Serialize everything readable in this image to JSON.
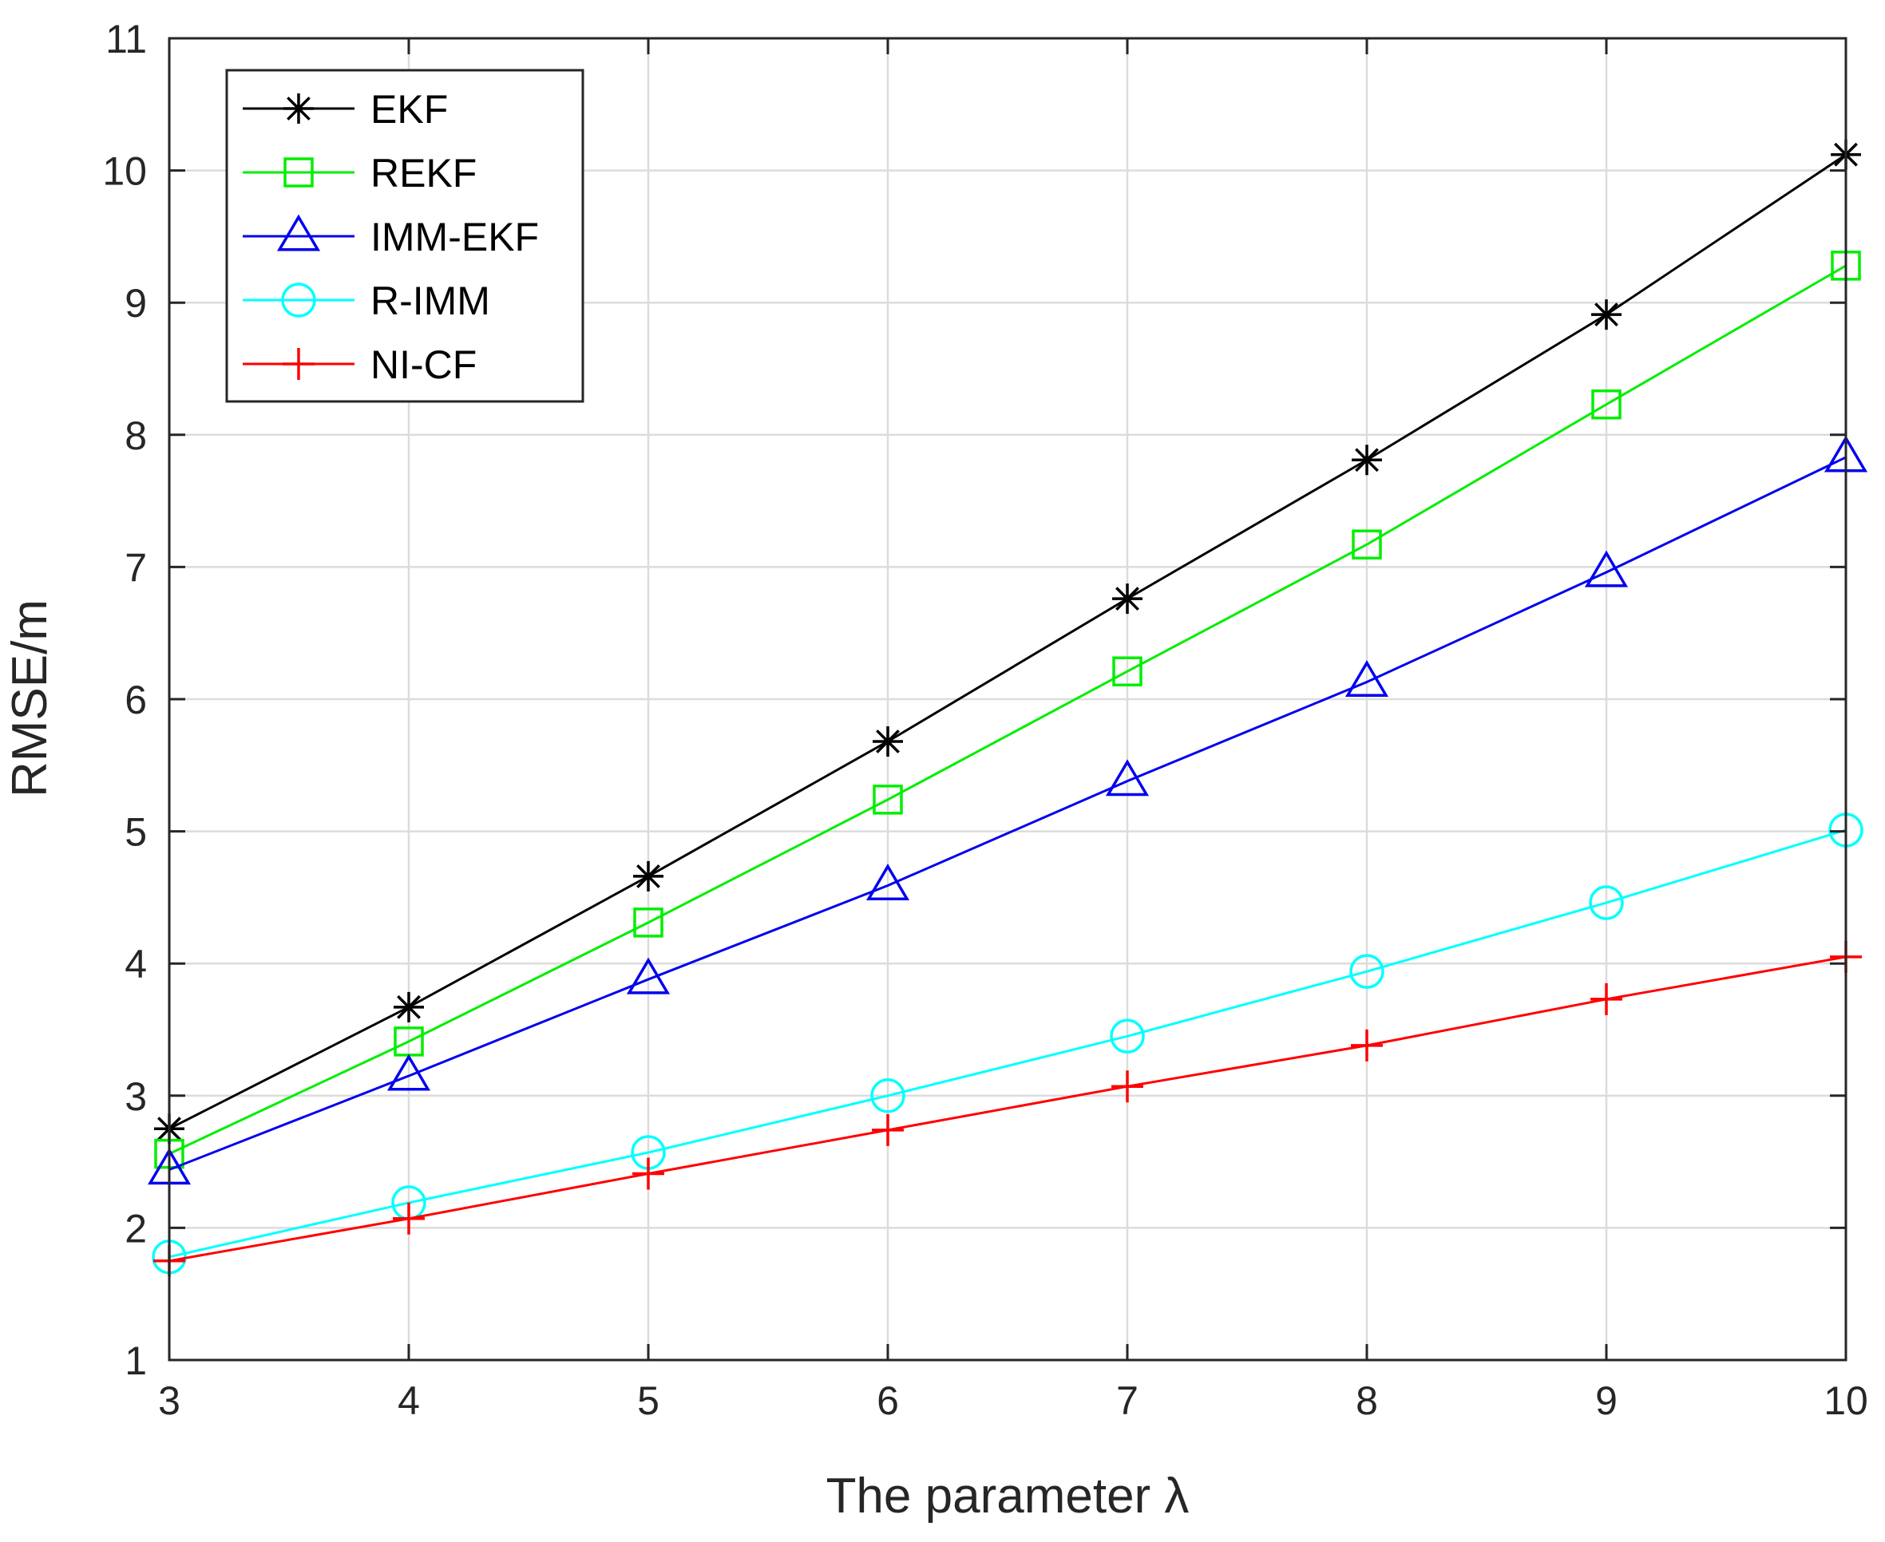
{
  "chart_data": {
    "type": "line",
    "title": "",
    "xlabel": "The parameter λ",
    "ylabel": "RMSE/m",
    "x": [
      3,
      4,
      5,
      6,
      7,
      8,
      9,
      10
    ],
    "xlim": [
      3,
      10
    ],
    "ylim": [
      1,
      11
    ],
    "xticks": [
      3,
      4,
      5,
      6,
      7,
      8,
      9,
      10
    ],
    "yticks": [
      1,
      2,
      3,
      4,
      5,
      6,
      7,
      8,
      9,
      10,
      11
    ],
    "grid": true,
    "legend_position": "top-left",
    "series": [
      {
        "name": "EKF",
        "color": "#000000",
        "marker": "asterisk",
        "values": [
          2.75,
          3.67,
          4.66,
          5.68,
          6.76,
          7.81,
          8.91,
          10.12
        ]
      },
      {
        "name": "REKF",
        "color": "#00ee00",
        "marker": "square",
        "values": [
          2.56,
          3.41,
          4.31,
          5.24,
          6.21,
          7.17,
          8.23,
          9.28
        ]
      },
      {
        "name": "IMM-EKF",
        "color": "#0000ee",
        "marker": "triangle",
        "values": [
          2.44,
          3.15,
          3.88,
          4.59,
          5.38,
          6.13,
          6.96,
          7.83
        ]
      },
      {
        "name": "R-IMM",
        "color": "#00ffff",
        "marker": "circle",
        "values": [
          1.78,
          2.19,
          2.57,
          3.0,
          3.45,
          3.94,
          4.46,
          5.01
        ]
      },
      {
        "name": "NI-CF",
        "color": "#ff0000",
        "marker": "plus",
        "values": [
          1.75,
          2.07,
          2.41,
          2.74,
          3.07,
          3.38,
          3.73,
          4.05
        ]
      }
    ]
  }
}
